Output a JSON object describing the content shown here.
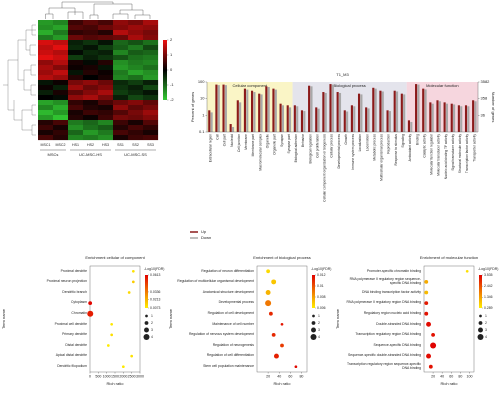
{
  "chart_data": [
    {
      "type": "heatmap",
      "groups": [
        {
          "name": "MSCs",
          "columns": [
            "MSC1",
            "MSC2"
          ]
        },
        {
          "name": "UC-MSC-HS",
          "columns": [
            "HS1",
            "HS2",
            "HS3"
          ]
        },
        {
          "name": "UC-MSC-SS",
          "columns": [
            "SS1",
            "SS2",
            "SS3"
          ]
        }
      ],
      "values": [
        [
          -1.5,
          -1.3,
          0.5,
          0.8,
          0.6,
          1.2,
          1.0,
          1.4
        ],
        [
          -1.4,
          -1.6,
          0.7,
          0.6,
          0.9,
          1.1,
          1.3,
          1.2
        ],
        [
          -1.7,
          -1.2,
          0.4,
          0.5,
          0.3,
          1.5,
          1.2,
          1.0
        ],
        [
          -1.2,
          -1.5,
          0.9,
          0.7,
          0.8,
          0.9,
          1.4,
          1.1
        ],
        [
          1.8,
          1.6,
          -0.3,
          -0.5,
          -0.2,
          -1.0,
          -0.8,
          -1.1
        ],
        [
          1.6,
          1.9,
          -0.4,
          -0.2,
          -0.6,
          -0.9,
          -1.2,
          -0.7
        ],
        [
          1.7,
          1.5,
          -0.1,
          -0.4,
          -0.3,
          -1.3,
          -0.9,
          -1.0
        ],
        [
          1.9,
          1.7,
          -0.6,
          -0.3,
          -0.5,
          -0.8,
          -1.1,
          -1.2
        ],
        [
          1.2,
          1.5,
          0.2,
          -0.1,
          0.3,
          -1.4,
          -1.2,
          -1.3
        ],
        [
          1.4,
          1.1,
          0.1,
          0.2,
          -0.2,
          -1.5,
          -1.3,
          -1.1
        ],
        [
          1.3,
          1.6,
          -0.2,
          0.3,
          0.1,
          -1.2,
          -1.6,
          -1.4
        ],
        [
          1.5,
          1.3,
          0.3,
          0.0,
          0.2,
          -1.3,
          -1.1,
          -1.5
        ],
        [
          -0.2,
          0.1,
          1.0,
          1.2,
          0.9,
          -0.4,
          -0.6,
          -0.3
        ],
        [
          0.1,
          -0.3,
          1.3,
          0.9,
          1.1,
          -0.5,
          -0.3,
          -0.7
        ],
        [
          -0.3,
          0.2,
          0.8,
          1.1,
          1.4,
          -0.6,
          -0.4,
          -0.2
        ],
        [
          0.0,
          -0.1,
          1.2,
          1.4,
          1.0,
          -0.3,
          -0.7,
          -0.5
        ],
        [
          -1.6,
          -1.4,
          0.4,
          0.2,
          0.6,
          0.9,
          1.1,
          0.8
        ],
        [
          -1.3,
          -1.7,
          0.6,
          0.3,
          0.2,
          1.2,
          0.8,
          1.0
        ],
        [
          -1.8,
          -1.5,
          0.2,
          0.5,
          0.4,
          0.7,
          1.0,
          1.3
        ],
        [
          -1.5,
          -1.9,
          0.3,
          0.1,
          0.5,
          1.0,
          0.9,
          1.1
        ],
        [
          0.3,
          0.6,
          -1.2,
          -1.0,
          -1.3,
          0.5,
          0.2,
          0.7
        ],
        [
          0.5,
          0.2,
          -1.4,
          -1.1,
          -0.9,
          0.3,
          0.6,
          0.4
        ],
        [
          0.2,
          0.4,
          -1.0,
          -1.5,
          -1.2,
          0.6,
          0.4,
          0.2
        ],
        [
          0.6,
          0.3,
          -1.3,
          -1.2,
          -1.4,
          0.2,
          0.5,
          0.6
        ]
      ],
      "zlim": [
        -2,
        2
      ],
      "zticks": [
        2,
        1,
        0,
        -1,
        -2
      ],
      "colormap": [
        "#33cc33",
        "#000000",
        "#ee1111"
      ]
    },
    {
      "type": "bar",
      "title": "T1_M3",
      "ylabel": "Percent of genes",
      "y2label": "Number of genes",
      "log_scale": true,
      "ylim": [
        0.1,
        100
      ],
      "yticks": [
        0.1,
        1,
        10,
        100
      ],
      "y2lim": [
        3.582,
        3582
      ],
      "y2ticks": [
        3582,
        358,
        36
      ],
      "series": [
        {
          "name": "Up",
          "color": "#8b1a1a"
        },
        {
          "name": "Down",
          "color": "#a8a8a8"
        }
      ],
      "sections": [
        {
          "name": "Cellular component",
          "color": "#faf5c6",
          "categories": [
            "Extracellular region",
            "Cell",
            "Cell part",
            "Nucleoid",
            "Cell junction",
            "Membrane",
            "Membrane part",
            "Macromolecular complex",
            "Organelle",
            "Organelle part",
            "Synapse",
            "Synapse part"
          ],
          "values": [
            [
              2,
              70,
              70,
              0.3,
              8,
              40,
              30,
              20,
              55,
              40,
              5,
              4
            ],
            [
              1.5,
              65,
              65,
              0.2,
              6,
              35,
              25,
              18,
              50,
              35,
              4,
              3
            ]
          ]
        },
        {
          "name": "Biological process",
          "color": "#e4e4ec",
          "categories": [
            "Biological adhesion",
            "Behavior",
            "Biological regulation",
            "Cell proliferation",
            "Cellular component organization or biogenesis",
            "Cellular process",
            "Developmental process",
            "Growth",
            "Immune system process",
            "Localization",
            "Locomotion",
            "Metabolic process",
            "Multicellular organismal process",
            "Reproduction",
            "Response to stimulus",
            "Signaling"
          ],
          "values": [
            [
              4,
              2,
              60,
              3,
              25,
              75,
              25,
              2,
              4,
              20,
              3,
              45,
              30,
              2,
              30,
              20
            ],
            [
              3.5,
              1.8,
              55,
              2.5,
              22,
              70,
              22,
              1.7,
              3.5,
              18,
              2.6,
              40,
              27,
              1.8,
              27,
              18
            ]
          ]
        },
        {
          "name": "Molecular function",
          "color": "#f6d6de",
          "categories": [
            "Antioxidant activity",
            "Binding",
            "Catalytic activity",
            "Molecular function regulator",
            "Molecular transducer activity",
            "Nucleic acid binding TF activity",
            "Signal transducer activity",
            "Structural molecule activity",
            "Transcription factor activity",
            "Transporter activity"
          ],
          "values": [
            [
              0.5,
              75,
              40,
              6,
              8,
              6,
              5,
              4,
              4,
              8
            ],
            [
              0.4,
              70,
              36,
              5,
              7,
              5,
              4.5,
              3.5,
              3.5,
              7
            ]
          ]
        }
      ]
    },
    {
      "type": "dot",
      "title": "Enrichment cellular of component",
      "xlabel": "Rich ratio",
      "ylabel": "Term name",
      "legend_title": "-Log10(FDR)",
      "categories": [
        "Proximal dendrite",
        "Proximal neuron projection",
        "Dendritic branch",
        "Cytoplasm",
        "Chromatin",
        "Proximal cell dendrite",
        "Primary dendrite",
        "Distal dendrite",
        "Apical distal dendrite",
        "Dendritic filopodium"
      ],
      "x": [
        2600,
        2600,
        2350,
        10,
        15,
        1300,
        1300,
        1100,
        2500,
        2000
      ],
      "fdr": [
        0.01,
        0.015,
        0.012,
        0.06,
        0.055,
        0.009,
        0.011,
        0.008,
        0.01,
        0.0085
      ],
      "size": [
        1,
        1,
        1,
        2,
        4,
        1,
        1,
        1,
        1,
        1
      ],
      "xlim": [
        0,
        3000
      ],
      "xticks": [
        0,
        500,
        1000,
        1500,
        2000,
        2500,
        3000
      ],
      "clim": [
        0.0073,
        0.0613
      ],
      "cticks": [
        0.0613,
        0.0336,
        0.0213,
        0.0073
      ],
      "sizeticks": [
        1,
        2,
        3,
        4
      ],
      "colormap": [
        "#ffee00",
        "#e00000"
      ]
    },
    {
      "type": "dot",
      "title": "Enrichment of biological process",
      "xlabel": "Rich ratio",
      "ylabel": "Term name",
      "legend_title": "-Log10(FDR)",
      "categories": [
        "Regulation of neuron differentiation",
        "Regulation of multicellular organismal development",
        "Anatomical structure development",
        "Developmental process",
        "Regulation of cell development",
        "Maintenance of cell number",
        "Regulation of nervous system development",
        "Regulation of neurogenesis",
        "Regulation of cell differentiation",
        "Stem cell population maintenance"
      ],
      "x": [
        20,
        30,
        20,
        20,
        25,
        45,
        30,
        45,
        35,
        70
      ],
      "fdr": [
        0.0065,
        0.007,
        0.0075,
        0.009,
        0.011,
        0.0115,
        0.011,
        0.0105,
        0.0112,
        0.0118
      ],
      "size": [
        2,
        3,
        3,
        4,
        2,
        1,
        2,
        2,
        3,
        1
      ],
      "xlim": [
        0,
        90
      ],
      "xticks": [
        20,
        40,
        60,
        80
      ],
      "clim": [
        0.006,
        0.012
      ],
      "cticks": [
        0.012,
        0.01,
        0.008,
        0.006
      ],
      "sizeticks": [
        1,
        2,
        3,
        4
      ],
      "colormap": [
        "#ffee00",
        "#e00000"
      ]
    },
    {
      "type": "dot",
      "title": "Enrichment of molecular function",
      "xlabel": "Rich ratio",
      "ylabel": "Term name",
      "legend_title": "-Log10(FDR)",
      "categories": [
        "Promoter-specific chromatin binding",
        "RNA polymerase II regulatory region sequence-specific DNA binding",
        "DNA binding transcription factor activity",
        "RNA polymerase II regulatory region DNA binding",
        "Regulatory region nucleic acid binding",
        "Double-stranded DNA binding",
        "Transcription regulatory region DNA binding",
        "Sequence-specific DNA binding",
        "Sequence-specific double-stranded DNA binding",
        "Transcription regulatory region sequence-specific DNA binding"
      ],
      "x": [
        95,
        5,
        5,
        5,
        5,
        10,
        20,
        20,
        10,
        15
      ],
      "fdr": [
        0.5,
        1.2,
        1.0,
        3.2,
        3.3,
        3.4,
        3.3,
        3.5,
        3.4,
        3.3
      ],
      "size": [
        1,
        2,
        2,
        2,
        2,
        3,
        2,
        4,
        3,
        2
      ],
      "xlim": [
        0,
        110
      ],
      "xticks": [
        20,
        40,
        60,
        80,
        100
      ],
      "clim": [
        0.289,
        3.535
      ],
      "cticks": [
        3.535,
        2.442,
        1.346,
        0.289
      ],
      "sizeticks": [
        1,
        2,
        3,
        4
      ],
      "colormap": [
        "#ffee00",
        "#e00000"
      ]
    }
  ]
}
